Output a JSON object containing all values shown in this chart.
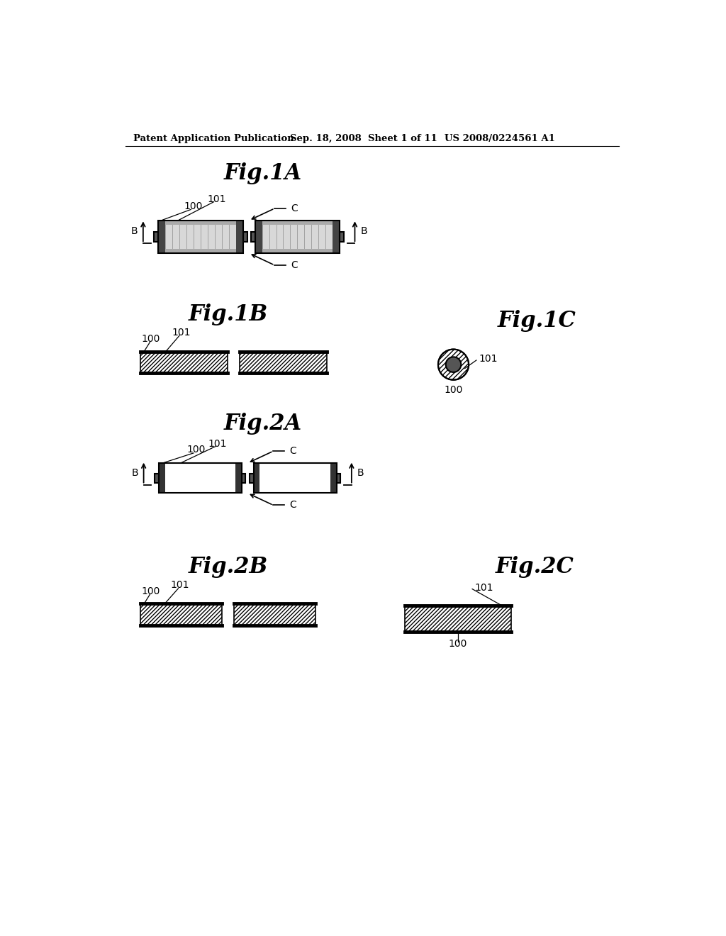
{
  "bg_color": "#ffffff",
  "header_left": "Patent Application Publication",
  "header_mid": "Sep. 18, 2008  Sheet 1 of 11",
  "header_right": "US 2008/0224561 A1",
  "fig_titles": {
    "fig1A": "Fig.1A",
    "fig1B": "Fig.1B",
    "fig1C": "Fig.1C",
    "fig2A": "Fig.2A",
    "fig2B": "Fig.2B",
    "fig2C": "Fig.2C"
  }
}
